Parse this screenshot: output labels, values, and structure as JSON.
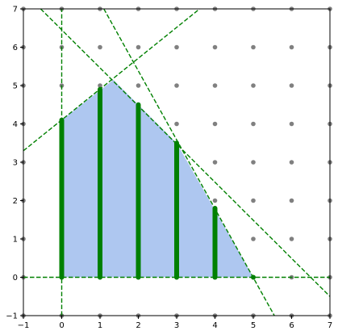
{
  "chart_data": {
    "type": "scatter",
    "title": "",
    "xlabel": "",
    "ylabel": "",
    "xlim": [
      -1,
      7
    ],
    "ylim": [
      -1,
      7
    ],
    "xticks": [
      -1,
      0,
      1,
      2,
      3,
      4,
      5,
      6,
      7
    ],
    "yticks": [
      -1,
      0,
      1,
      2,
      3,
      4,
      5,
      6,
      7
    ],
    "xtick_labels": [
      "−1",
      "0",
      "1",
      "2",
      "3",
      "4",
      "5",
      "6",
      "7"
    ],
    "ytick_labels": [
      "−1",
      "0",
      "1",
      "2",
      "3",
      "4",
      "5",
      "6",
      "7"
    ],
    "grid": false,
    "legend": "none",
    "integer_points": {
      "x_range": [
        -1,
        7
      ],
      "y_range": [
        -1,
        7
      ],
      "color": "#808080"
    },
    "feasible_region": {
      "color": "#aec7f0",
      "vertices": [
        [
          0,
          0
        ],
        [
          0,
          4.1
        ],
        [
          1.35,
          5.15
        ],
        [
          3,
          3.5
        ],
        [
          5,
          0
        ]
      ]
    },
    "constraint_lines": [
      {
        "from": [
          -1,
          3.3
        ],
        "to": [
          3.6,
          7
        ]
      },
      {
        "from": [
          -0.55,
          7
        ],
        "to": [
          7,
          -0.5
        ]
      },
      {
        "from": [
          1.1,
          7
        ],
        "to": [
          5.55,
          -1
        ]
      },
      {
        "from": [
          -1,
          0
        ],
        "to": [
          7,
          0
        ]
      },
      {
        "from": [
          0,
          -1
        ],
        "to": [
          0,
          7
        ]
      }
    ],
    "constraint_line_color": "#008000",
    "feasible_segments": [
      {
        "x": 0,
        "y_min": 0,
        "y_max": 4.1
      },
      {
        "x": 1,
        "y_min": 0,
        "y_max": 4.9
      },
      {
        "x": 2,
        "y_min": 0,
        "y_max": 4.5
      },
      {
        "x": 3,
        "y_min": 0,
        "y_max": 3.5
      },
      {
        "x": 4,
        "y_min": 0,
        "y_max": 1.8
      }
    ],
    "feasible_points": [
      [
        5,
        0
      ]
    ],
    "segment_color": "#008000"
  }
}
